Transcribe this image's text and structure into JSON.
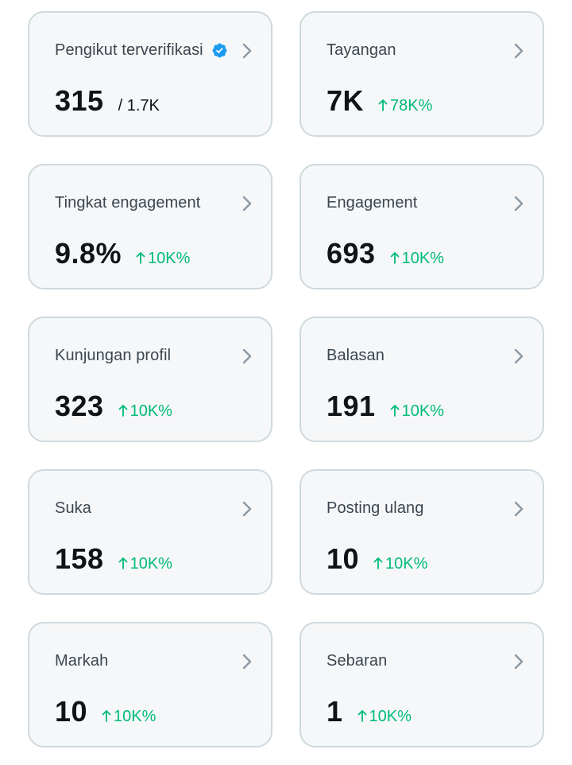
{
  "cards": [
    {
      "label": "Pengikut terverifikasi",
      "value": "315",
      "total": "/ 1.7K",
      "verified": true
    },
    {
      "label": "Tayangan",
      "value": "7K",
      "change": "78K%"
    },
    {
      "label": "Tingkat engagement",
      "value": "9.8%",
      "change": "10K%"
    },
    {
      "label": "Engagement",
      "value": "693",
      "change": "10K%"
    },
    {
      "label": "Kunjungan profil",
      "value": "323",
      "change": "10K%"
    },
    {
      "label": "Balasan",
      "value": "191",
      "change": "10K%"
    },
    {
      "label": "Suka",
      "value": "158",
      "change": "10K%"
    },
    {
      "label": "Posting ulang",
      "value": "10",
      "change": "10K%"
    },
    {
      "label": "Markah",
      "value": "10",
      "change": "10K%"
    },
    {
      "label": "Sebaran",
      "value": "1",
      "change": "10K%"
    }
  ],
  "icons": {
    "verified": "verified-badge-icon",
    "chevron": "chevron-right-icon",
    "arrow": "arrow-up-icon"
  },
  "colors": {
    "positive_change": "#00ba7c",
    "verified_badge": "#1d9bf0",
    "chevron": "#8b98a5"
  }
}
